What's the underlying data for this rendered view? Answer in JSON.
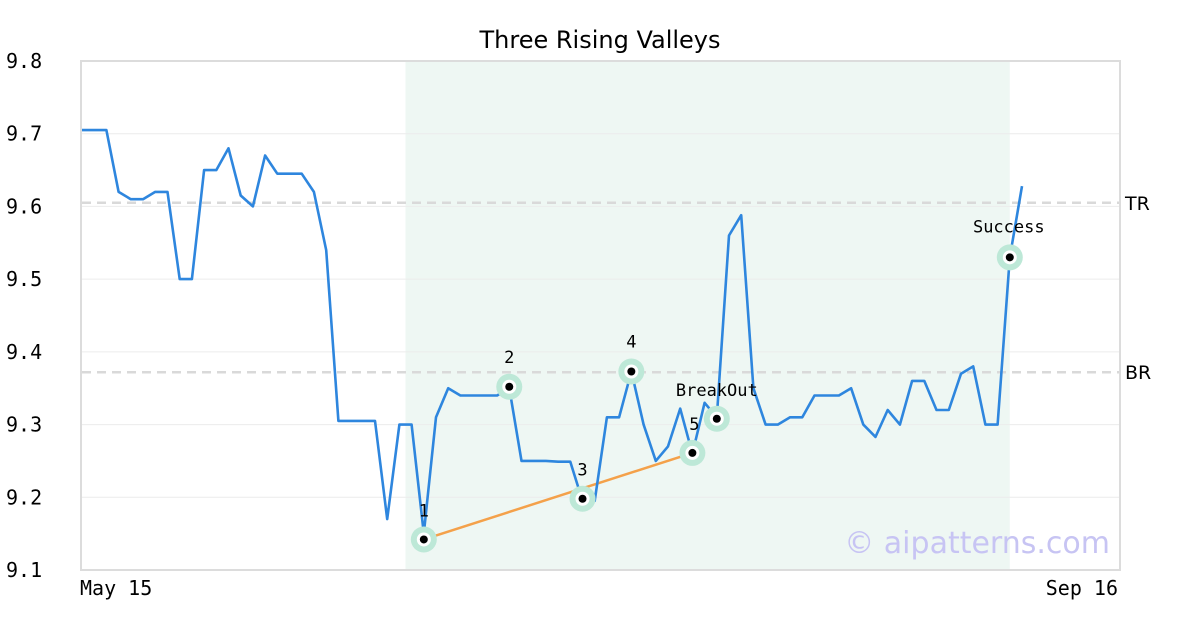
{
  "chart_data": {
    "type": "line",
    "title": "Three Rising Valleys",
    "xlabel": "",
    "ylabel": "",
    "ylim": [
      9.1,
      9.8
    ],
    "yticks": [
      "9.1",
      "9.2",
      "9.3",
      "9.4",
      "9.5",
      "9.6",
      "9.7",
      "9.8"
    ],
    "xtick_labels": [
      "May 15",
      "Sep 16"
    ],
    "grid": "horizontal",
    "colors": {
      "line": "#2e86de",
      "trendline": "#f4a14a",
      "highlight": "#eef7f3",
      "marker_halo": "#bde8d7",
      "reference": "#d9d9d9",
      "watermark": "#c7c4f3"
    },
    "series": [
      {
        "y": [
          9.705,
          9.705,
          9.705,
          9.62,
          9.61,
          9.61,
          9.62,
          9.62,
          9.5,
          9.5,
          9.65,
          9.65,
          9.68,
          9.615,
          9.6,
          9.67,
          9.645,
          9.645,
          9.645,
          9.62,
          9.54,
          9.305,
          9.305,
          9.305,
          9.305,
          9.17,
          9.3,
          9.3,
          9.15,
          9.31,
          9.35,
          9.34,
          9.34,
          9.34,
          9.34,
          9.35,
          9.25,
          9.25,
          9.25,
          9.249,
          9.249,
          9.195,
          9.195,
          9.31,
          9.31,
          9.373,
          9.3,
          9.25,
          9.27,
          9.322,
          9.26,
          9.33,
          9.31,
          9.56,
          9.588,
          9.35,
          9.3,
          9.3,
          9.31,
          9.31,
          9.34,
          9.34,
          9.34,
          9.35,
          9.3,
          9.283,
          9.32,
          9.3,
          9.36,
          9.36,
          9.32,
          9.32,
          9.37,
          9.38,
          9.3,
          9.3,
          9.53,
          9.628
        ]
      }
    ],
    "highlight_range": [
      26.5,
      76
    ],
    "reference_lines": [
      {
        "label": "TR",
        "value": 9.605
      },
      {
        "label": "BR",
        "value": 9.372
      }
    ],
    "annotations": [
      {
        "label": "1",
        "x": 28,
        "value": 9.142
      },
      {
        "label": "2",
        "x": 35,
        "value": 9.352
      },
      {
        "label": "3",
        "x": 41,
        "value": 9.198
      },
      {
        "label": "4",
        "x": 45,
        "value": 9.373
      },
      {
        "label": "5",
        "x": 50,
        "value": 9.261
      },
      {
        "label": "BreakOut",
        "x": 52,
        "value": 9.308
      },
      {
        "label": "Success",
        "x": 76,
        "value": 9.53
      }
    ],
    "trendline": {
      "from_label": "1",
      "to_label": "5"
    },
    "watermark": "© aipatterns.com"
  }
}
